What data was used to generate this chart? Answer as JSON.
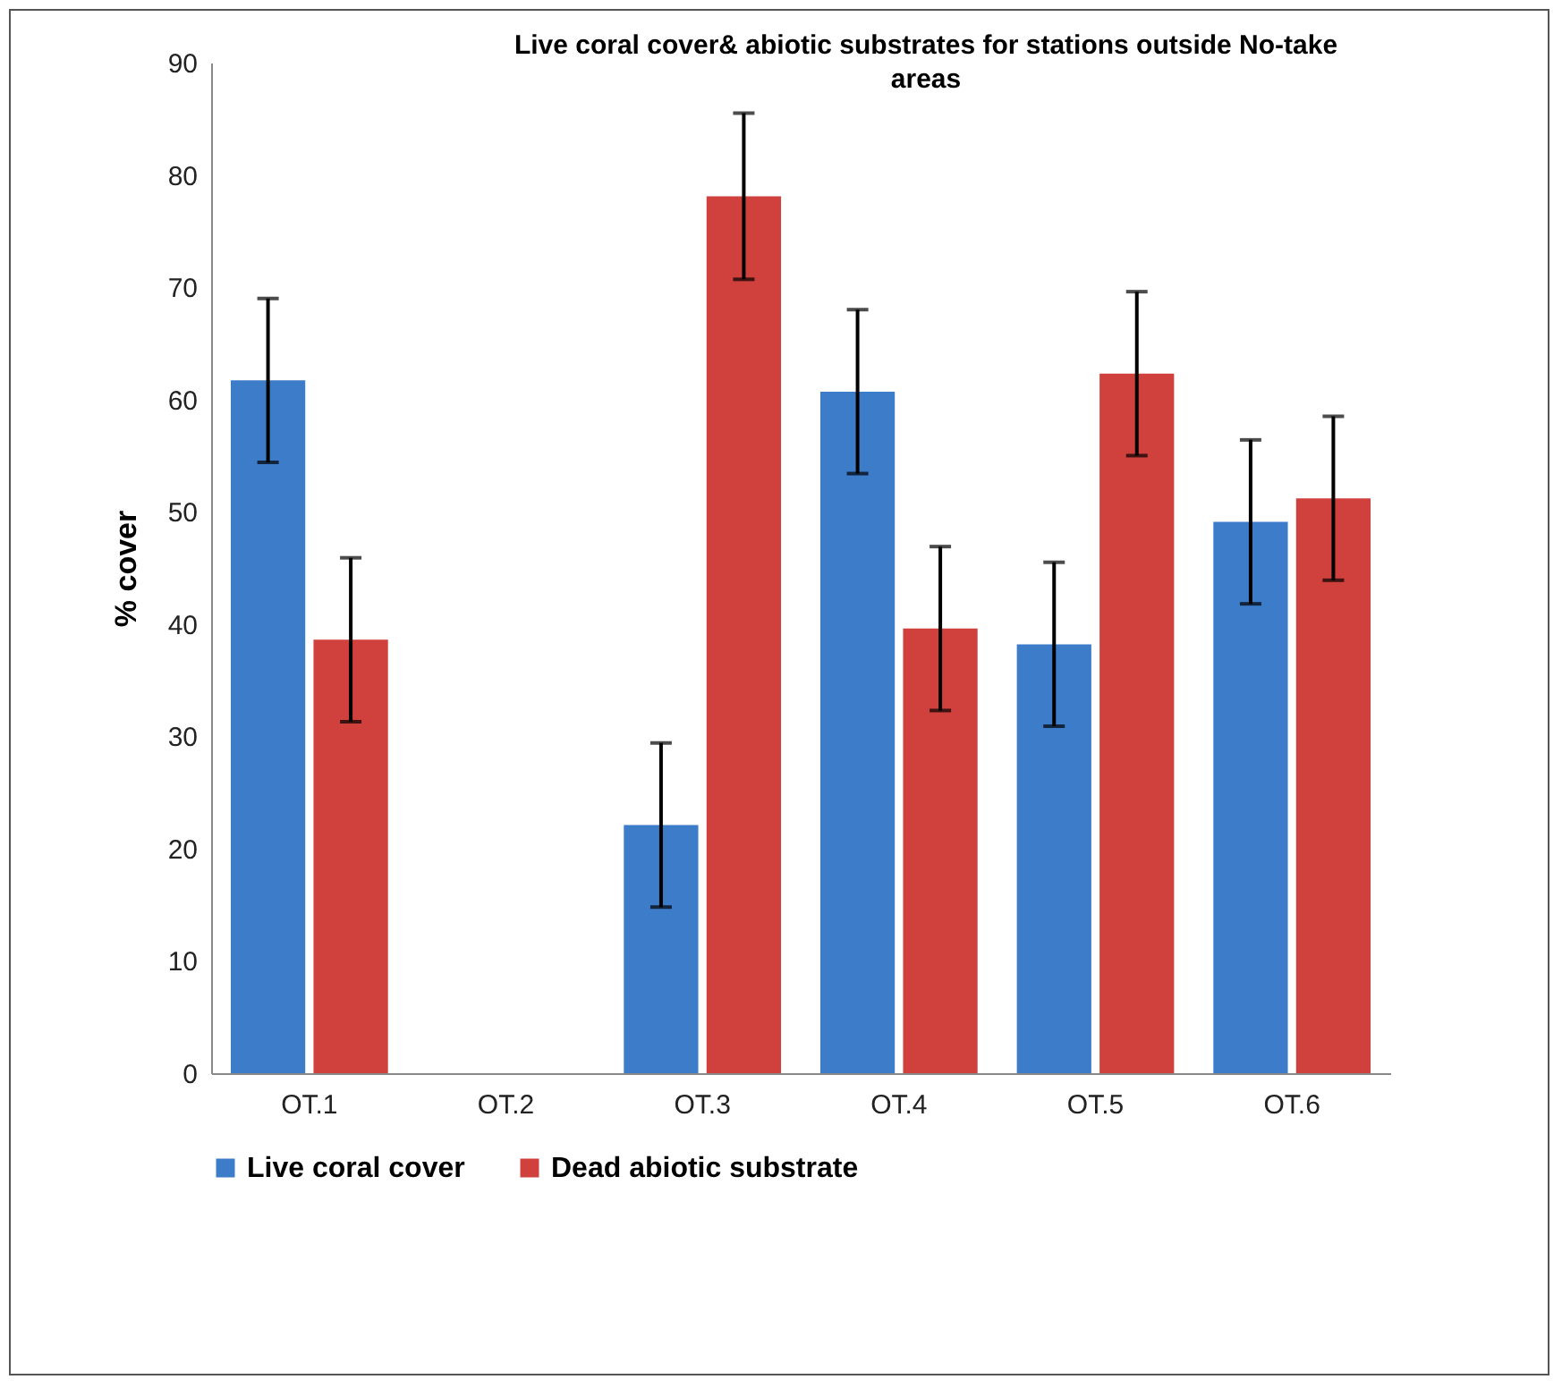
{
  "chart_data": {
    "type": "bar",
    "title": "Live coral cover& abiotic substrates for stations outside No-take areas",
    "ylabel": "% cover",
    "categories": [
      "OT.1",
      "OT.2",
      "OT.3",
      "OT.4",
      "OT.5",
      "OT.6"
    ],
    "series": [
      {
        "name": "Live coral cover",
        "color": "#3d7cc9",
        "values": [
          61.7,
          null,
          22.1,
          60.7,
          38.2,
          49.1
        ],
        "errors": [
          7.3,
          null,
          7.3,
          7.3,
          7.3,
          7.3
        ]
      },
      {
        "name": "Dead abiotic substrate",
        "color": "#d0403c",
        "values": [
          38.6,
          null,
          78.1,
          39.6,
          62.3,
          51.2
        ],
        "errors": [
          7.3,
          null,
          7.4,
          7.3,
          7.3,
          7.3
        ]
      }
    ],
    "ylim": [
      0,
      90
    ],
    "yticks": [
      0,
      10,
      20,
      30,
      40,
      50,
      60,
      70,
      80,
      90
    ],
    "grid": false,
    "legend": "bottom"
  }
}
